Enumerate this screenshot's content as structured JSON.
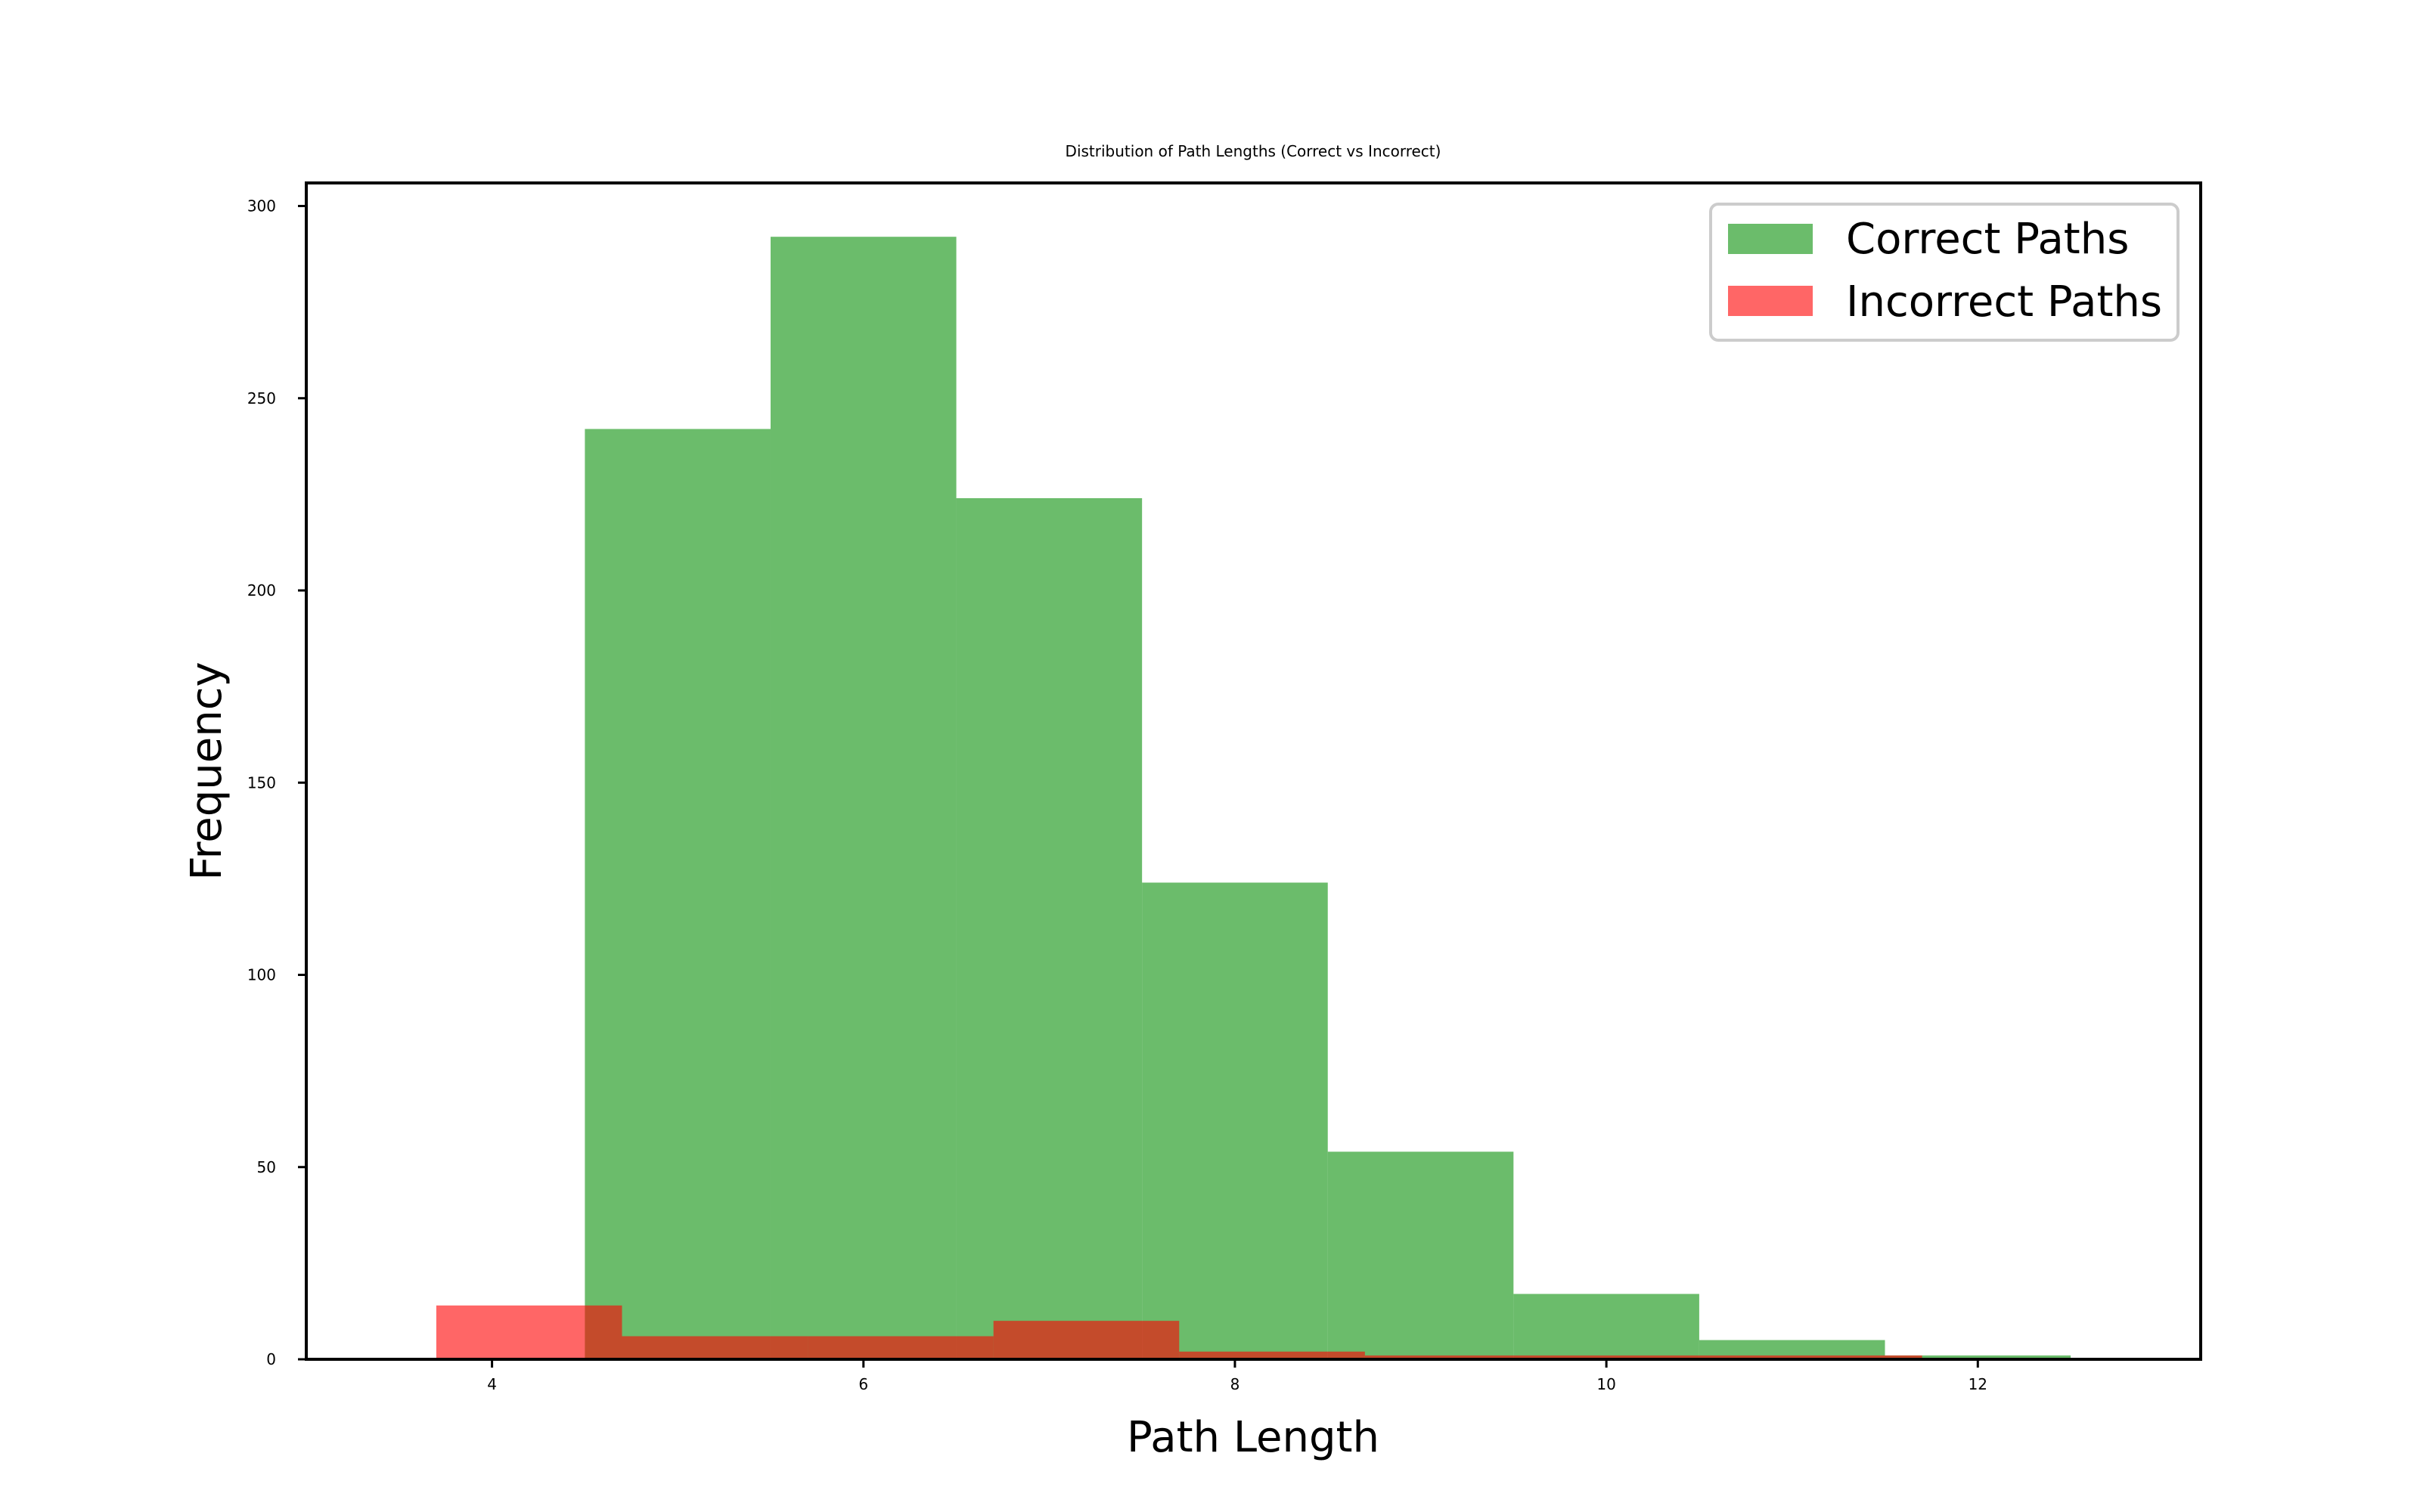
{
  "chart_data": {
    "type": "histogram",
    "title": "Distribution of Path Lengths (Correct vs Incorrect)",
    "xlabel": "Path Length",
    "ylabel": "Frequency",
    "xlim": [
      3.0,
      13.2
    ],
    "ylim": [
      0,
      306
    ],
    "xticks": [
      4,
      6,
      8,
      10,
      12
    ],
    "yticks": [
      0,
      50,
      100,
      150,
      200,
      250,
      300
    ],
    "grid": false,
    "legend_position": "top-right",
    "series": [
      {
        "name": "Correct Paths",
        "color": "#2ca02c",
        "opacity": 0.7,
        "bins": [
          {
            "x0": 4.5,
            "x1": 5.5,
            "value": 242
          },
          {
            "x0": 5.5,
            "x1": 6.5,
            "value": 292
          },
          {
            "x0": 6.5,
            "x1": 7.5,
            "value": 224
          },
          {
            "x0": 7.5,
            "x1": 8.5,
            "value": 124
          },
          {
            "x0": 8.5,
            "x1": 9.5,
            "value": 54
          },
          {
            "x0": 9.5,
            "x1": 10.5,
            "value": 17
          },
          {
            "x0": 10.5,
            "x1": 11.5,
            "value": 5
          },
          {
            "x0": 11.5,
            "x1": 12.5,
            "value": 1
          }
        ]
      },
      {
        "name": "Incorrect Paths",
        "color": "#ff0000",
        "opacity": 0.6,
        "bins": [
          {
            "x0": 3.7,
            "x1": 4.7,
            "value": 14
          },
          {
            "x0": 4.7,
            "x1": 5.7,
            "value": 6
          },
          {
            "x0": 5.7,
            "x1": 6.7,
            "value": 6
          },
          {
            "x0": 6.7,
            "x1": 7.7,
            "value": 10
          },
          {
            "x0": 7.7,
            "x1": 8.7,
            "value": 2
          },
          {
            "x0": 8.7,
            "x1": 9.7,
            "value": 1
          },
          {
            "x0": 9.7,
            "x1": 10.7,
            "value": 1
          },
          {
            "x0": 10.7,
            "x1": 11.7,
            "value": 1
          }
        ]
      }
    ]
  }
}
